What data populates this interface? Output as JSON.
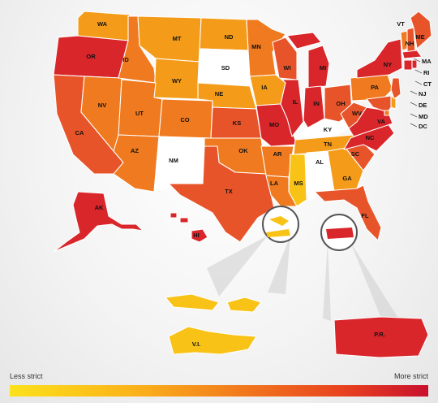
{
  "legend": {
    "low_label": "Less strict",
    "high_label": "More strict",
    "scale_colors": [
      "#fce11b",
      "#fbb21a",
      "#f27a1d",
      "#e8411f",
      "#c8102e"
    ]
  },
  "levels": {
    "0": "#ffffff",
    "1": "#f8c217",
    "2": "#f49c1a",
    "3": "#ef7a1f",
    "4": "#e8542a",
    "5": "#d8262b"
  },
  "regions": [
    {
      "id": "WA",
      "label": "WA",
      "level": 2
    },
    {
      "id": "OR",
      "label": "OR",
      "level": 5
    },
    {
      "id": "CA",
      "label": "CA",
      "level": 4
    },
    {
      "id": "NV",
      "label": "NV",
      "level": 3
    },
    {
      "id": "ID",
      "label": "ID",
      "level": 3
    },
    {
      "id": "MT",
      "label": "MT",
      "level": 2
    },
    {
      "id": "WY",
      "label": "WY",
      "level": 2
    },
    {
      "id": "UT",
      "label": "UT",
      "level": 3
    },
    {
      "id": "AZ",
      "label": "AZ",
      "level": 3
    },
    {
      "id": "CO",
      "label": "CO",
      "level": 3
    },
    {
      "id": "NM",
      "label": "NM",
      "level": 0
    },
    {
      "id": "ND",
      "label": "ND",
      "level": 2
    },
    {
      "id": "SD",
      "label": "SD",
      "level": 0
    },
    {
      "id": "NE",
      "label": "NE",
      "level": 2
    },
    {
      "id": "KS",
      "label": "KS",
      "level": 4
    },
    {
      "id": "OK",
      "label": "OK",
      "level": 3
    },
    {
      "id": "TX",
      "label": "TX",
      "level": 4
    },
    {
      "id": "MN",
      "label": "MN",
      "level": 3
    },
    {
      "id": "IA",
      "label": "IA",
      "level": 2
    },
    {
      "id": "MO",
      "label": "MO",
      "level": 5
    },
    {
      "id": "AR",
      "label": "AR",
      "level": 3
    },
    {
      "id": "LA",
      "label": "LA",
      "level": 3
    },
    {
      "id": "WI",
      "label": "WI",
      "level": 4
    },
    {
      "id": "IL",
      "label": "IL",
      "level": 5
    },
    {
      "id": "MS",
      "label": "MS",
      "level": 1
    },
    {
      "id": "MI",
      "label": "MI",
      "level": 5
    },
    {
      "id": "IN",
      "label": "IN",
      "level": 5
    },
    {
      "id": "KY",
      "label": "KY",
      "level": 0
    },
    {
      "id": "TN",
      "label": "TN",
      "level": 2
    },
    {
      "id": "AL",
      "label": "AL",
      "level": 0
    },
    {
      "id": "OH",
      "label": "OH",
      "level": 4
    },
    {
      "id": "GA",
      "label": "GA",
      "level": 2
    },
    {
      "id": "FL",
      "label": "FL",
      "level": 4
    },
    {
      "id": "SC",
      "label": "SC",
      "level": 4
    },
    {
      "id": "NC",
      "label": "NC",
      "level": 5
    },
    {
      "id": "VA",
      "label": "VA",
      "level": 5
    },
    {
      "id": "WV",
      "label": "WV",
      "level": 4
    },
    {
      "id": "PA",
      "label": "PA",
      "level": 3
    },
    {
      "id": "NY",
      "label": "NY",
      "level": 5
    },
    {
      "id": "ME",
      "label": "ME",
      "level": 4
    },
    {
      "id": "VT",
      "label": "VT",
      "level": 3
    },
    {
      "id": "NH",
      "label": "NH",
      "level": 4
    },
    {
      "id": "MA",
      "label": "MA",
      "level": 5
    },
    {
      "id": "RI",
      "label": "RI",
      "level": 5
    },
    {
      "id": "CT",
      "label": "CT",
      "level": 5
    },
    {
      "id": "NJ",
      "label": "NJ",
      "level": 4
    },
    {
      "id": "DE",
      "label": "DE",
      "level": 2
    },
    {
      "id": "MD",
      "label": "MD",
      "level": 4
    },
    {
      "id": "DC",
      "label": "DC",
      "level": 3
    },
    {
      "id": "AK",
      "label": "AK",
      "level": 5
    },
    {
      "id": "HI",
      "label": "HI",
      "level": 5
    },
    {
      "id": "VI",
      "label": "V.I.",
      "level": 1
    },
    {
      "id": "PR",
      "label": "P.R.",
      "level": 5
    }
  ]
}
